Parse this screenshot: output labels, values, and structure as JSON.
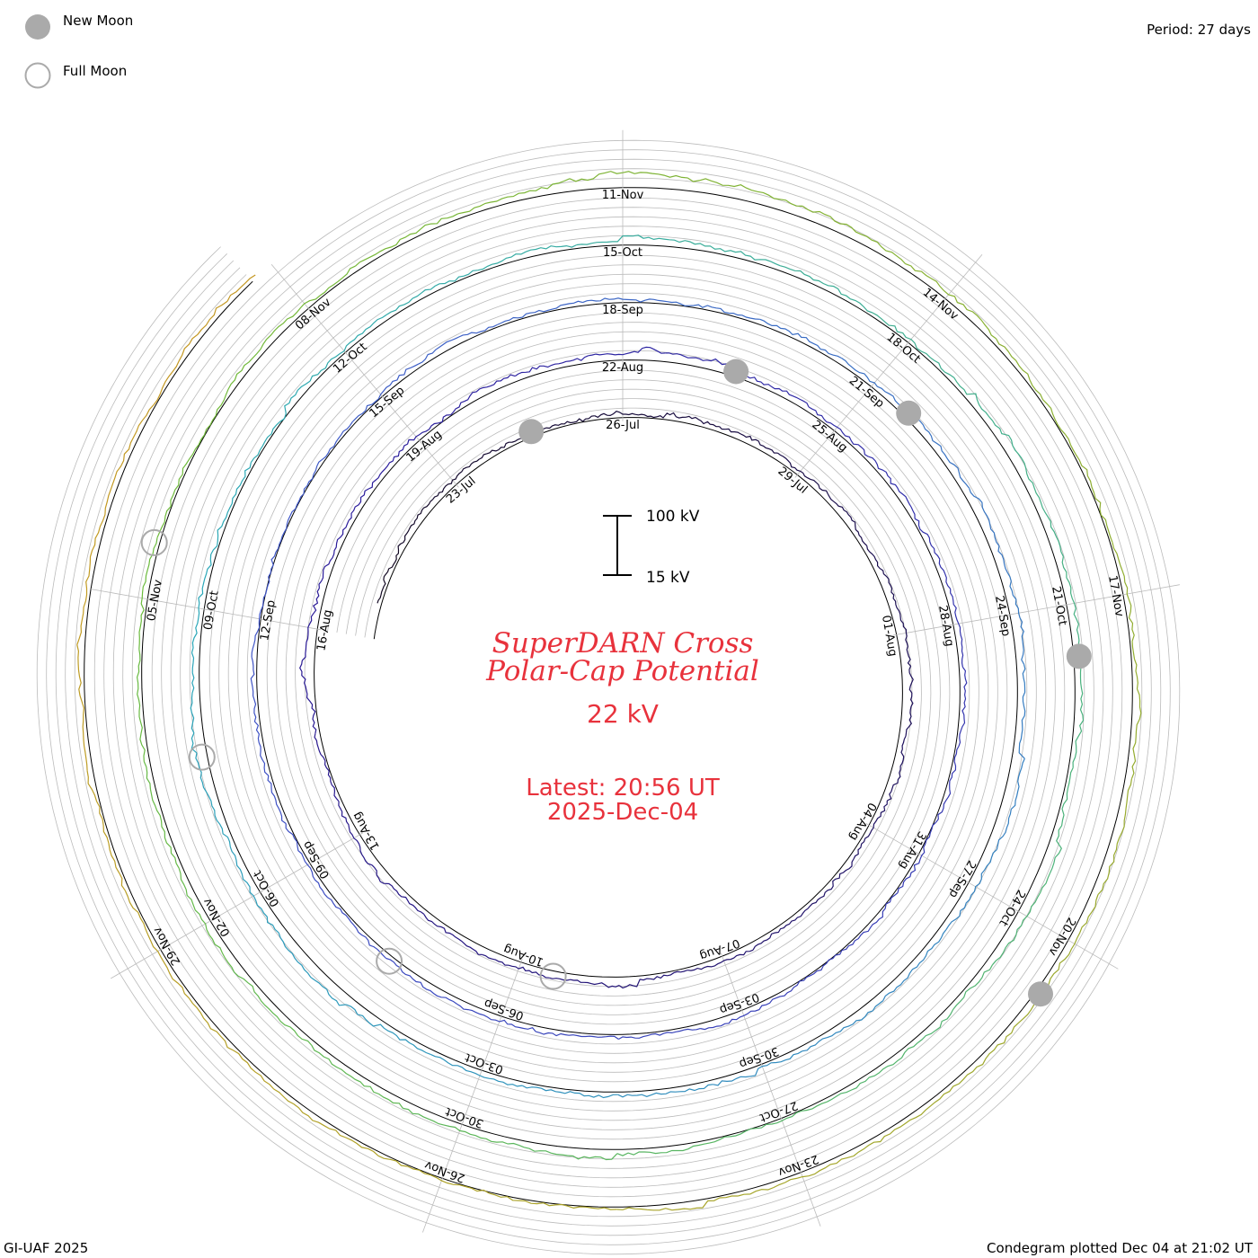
{
  "legend": {
    "new_moon": "New Moon",
    "full_moon": "Full Moon"
  },
  "period_label": "Period: 27 days",
  "footer_left": "GI-UAF 2025",
  "footer_right": "Condegram plotted Dec 04 at 21:02 UT",
  "title_line1": "SuperDARN Cross",
  "title_line2": "Polar-Cap Potential",
  "current_value": "22 kV",
  "latest_line1": "Latest: 20:56 UT",
  "latest_line2": "2025-Dec-04",
  "scale": {
    "top_label": "100 kV",
    "bottom_label": "15 kV",
    "top_kv": 100,
    "bottom_kv": 15
  },
  "colors": {
    "title": "#e8323c",
    "new_moon_fill": "#aaaaaa",
    "full_moon_stroke": "#aaaaaa",
    "grid": "#bbbbbb",
    "baseline": "#000000"
  },
  "chart_data": {
    "type": "line",
    "layout": "condegram-spiral",
    "period_days": 27,
    "start_date": "2025-07-20",
    "end_date": "2025-12-04",
    "units": "kV",
    "rotations": [
      {
        "start": "2025-07-20",
        "color": "#120822"
      },
      {
        "start": "2025-08-16",
        "color": "#2a1a99"
      },
      {
        "start": "2025-09-12",
        "color": "#3f55c8"
      },
      {
        "start": "2025-10-09",
        "color": "#2aa8b8"
      },
      {
        "start": "2025-11-05",
        "color": "#6cbb3a"
      },
      {
        "start": "2025-12-02",
        "color": "#c39a22"
      }
    ],
    "date_labels": [
      "23-Jul",
      "26-Jul",
      "29-Jul",
      "01-Aug",
      "04-Aug",
      "07-Aug",
      "10-Aug",
      "13-Aug",
      "16-Aug",
      "19-Aug",
      "22-Aug",
      "25-Aug",
      "28-Aug",
      "31-Aug",
      "03-Sep",
      "06-Sep",
      "09-Sep",
      "12-Sep",
      "15-Sep",
      "18-Sep",
      "21-Sep",
      "24-Sep",
      "27-Sep",
      "30-Sep",
      "03-Oct",
      "06-Oct",
      "09-Oct",
      "12-Oct",
      "15-Oct",
      "18-Oct",
      "21-Oct",
      "24-Oct",
      "27-Oct",
      "30-Oct",
      "02-Nov",
      "05-Nov",
      "08-Nov",
      "11-Nov",
      "14-Nov",
      "17-Nov",
      "20-Nov",
      "23-Nov",
      "26-Nov",
      "29-Nov"
    ],
    "new_moons": [
      "2025-07-24",
      "2025-08-23",
      "2025-09-21",
      "2025-10-21",
      "2025-11-20"
    ],
    "full_moons": [
      "2025-08-09",
      "2025-09-07",
      "2025-10-07",
      "2025-11-05"
    ],
    "typical_range_kv": [
      15,
      100
    ]
  }
}
